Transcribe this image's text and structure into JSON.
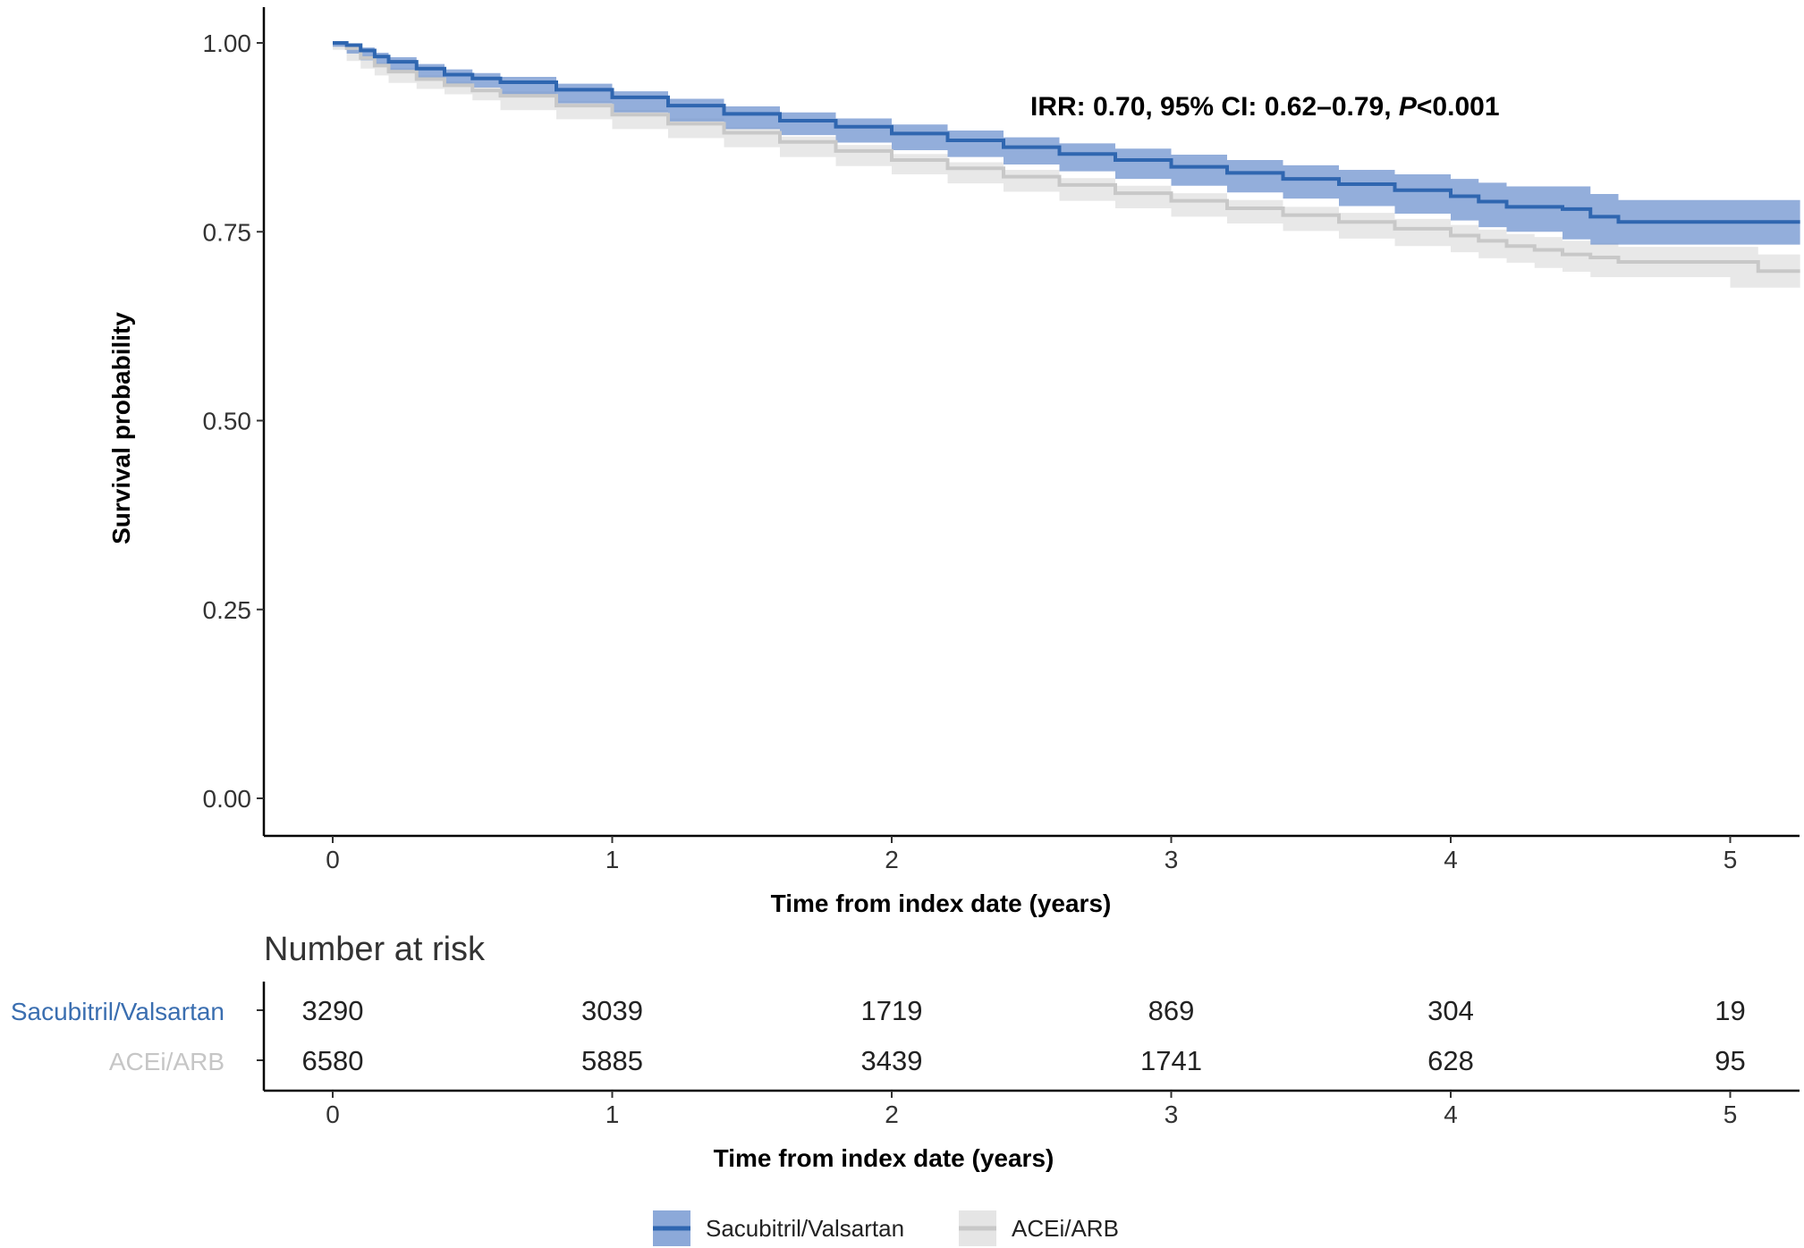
{
  "colors": {
    "sacubitril": "#2f66b0",
    "sacubitril_band": "#6f93cf",
    "acei": "#c8c8c8",
    "acei_band": "#e2e2e2",
    "axis": "#000000"
  },
  "chart_data": [
    {
      "type": "line",
      "subtype": "kaplan-meier",
      "title": "",
      "xlabel": "Time from index date (years)",
      "ylabel": "Survival probability",
      "xlim": [
        0,
        5.25
      ],
      "ylim": [
        0.0,
        1.0
      ],
      "x_ticks": [
        "0",
        "1",
        "2",
        "3",
        "4",
        "5"
      ],
      "y_ticks": [
        "0.00",
        "0.25",
        "0.50",
        "0.75",
        "1.00"
      ],
      "grid": false,
      "annotation": {
        "prefix": "IRR: 0.70, 95% CI: 0.62–0.79, ",
        "p_symbol": "P",
        "p_value": "<0.001"
      },
      "series": [
        {
          "name": "Sacubitril/Valsartan",
          "color": "#2f66b0",
          "x": [
            0,
            0.05,
            0.1,
            0.15,
            0.2,
            0.3,
            0.4,
            0.5,
            0.6,
            0.8,
            1.0,
            1.2,
            1.4,
            1.6,
            1.8,
            2.0,
            2.2,
            2.4,
            2.6,
            2.8,
            3.0,
            3.2,
            3.4,
            3.6,
            3.8,
            4.0,
            4.1,
            4.2,
            4.4,
            4.5,
            4.6,
            4.8,
            5.0,
            5.25
          ],
          "y": [
            1.0,
            0.997,
            0.99,
            0.982,
            0.975,
            0.966,
            0.958,
            0.953,
            0.948,
            0.938,
            0.928,
            0.917,
            0.906,
            0.897,
            0.889,
            0.88,
            0.871,
            0.862,
            0.853,
            0.845,
            0.836,
            0.828,
            0.82,
            0.813,
            0.805,
            0.797,
            0.79,
            0.783,
            0.78,
            0.77,
            0.763,
            0.763,
            0.763,
            0.763
          ],
          "ci_upper": [
            1.0,
            0.999,
            0.994,
            0.987,
            0.981,
            0.972,
            0.965,
            0.96,
            0.955,
            0.946,
            0.936,
            0.926,
            0.916,
            0.908,
            0.9,
            0.892,
            0.884,
            0.875,
            0.867,
            0.86,
            0.852,
            0.845,
            0.838,
            0.832,
            0.826,
            0.82,
            0.815,
            0.81,
            0.81,
            0.8,
            0.792,
            0.792,
            0.792,
            0.792
          ],
          "ci_lower": [
            1.0,
            0.995,
            0.986,
            0.977,
            0.969,
            0.96,
            0.951,
            0.946,
            0.941,
            0.93,
            0.92,
            0.908,
            0.896,
            0.886,
            0.878,
            0.868,
            0.858,
            0.849,
            0.839,
            0.83,
            0.82,
            0.811,
            0.802,
            0.794,
            0.784,
            0.774,
            0.765,
            0.756,
            0.75,
            0.74,
            0.733,
            0.733,
            0.733,
            0.733
          ]
        },
        {
          "name": "ACEi/ARB",
          "color": "#c8c8c8",
          "x": [
            0,
            0.05,
            0.1,
            0.15,
            0.2,
            0.3,
            0.4,
            0.5,
            0.6,
            0.8,
            1.0,
            1.2,
            1.4,
            1.6,
            1.8,
            2.0,
            2.2,
            2.4,
            2.6,
            2.8,
            3.0,
            3.2,
            3.4,
            3.6,
            3.8,
            4.0,
            4.1,
            4.2,
            4.3,
            4.4,
            4.5,
            4.6,
            4.8,
            5.0,
            5.1,
            5.25
          ],
          "y": [
            1.0,
            0.993,
            0.98,
            0.97,
            0.962,
            0.952,
            0.944,
            0.937,
            0.93,
            0.917,
            0.905,
            0.893,
            0.881,
            0.869,
            0.857,
            0.845,
            0.834,
            0.823,
            0.812,
            0.801,
            0.791,
            0.781,
            0.772,
            0.763,
            0.754,
            0.745,
            0.738,
            0.731,
            0.726,
            0.72,
            0.716,
            0.71,
            0.71,
            0.71,
            0.698,
            0.698
          ],
          "ci_upper": [
            1.0,
            0.995,
            0.984,
            0.974,
            0.967,
            0.957,
            0.949,
            0.942,
            0.936,
            0.923,
            0.911,
            0.9,
            0.888,
            0.876,
            0.865,
            0.853,
            0.842,
            0.832,
            0.821,
            0.811,
            0.801,
            0.792,
            0.783,
            0.775,
            0.767,
            0.759,
            0.753,
            0.747,
            0.743,
            0.738,
            0.735,
            0.73,
            0.73,
            0.73,
            0.72,
            0.72
          ],
          "ci_lower": [
            1.0,
            0.991,
            0.976,
            0.966,
            0.957,
            0.947,
            0.939,
            0.932,
            0.924,
            0.911,
            0.899,
            0.886,
            0.874,
            0.862,
            0.849,
            0.837,
            0.826,
            0.814,
            0.803,
            0.791,
            0.781,
            0.77,
            0.761,
            0.751,
            0.741,
            0.731,
            0.723,
            0.715,
            0.709,
            0.702,
            0.697,
            0.69,
            0.69,
            0.69,
            0.676,
            0.676
          ]
        }
      ]
    },
    {
      "type": "table",
      "title": "Number at risk",
      "xlabel": "Time from index date (years)",
      "x_ticks": [
        "0",
        "1",
        "2",
        "3",
        "4",
        "5"
      ],
      "rows": [
        {
          "label": "Sacubitril/Valsartan",
          "color": "#2f66b0",
          "values": [
            "3290",
            "3039",
            "1719",
            "869",
            "304",
            "19"
          ]
        },
        {
          "label": "ACEi/ARB",
          "color": "#c8c8c8",
          "values": [
            "6580",
            "5885",
            "3439",
            "1741",
            "628",
            "95"
          ]
        }
      ]
    }
  ],
  "legend": {
    "placement": "bottom",
    "items": [
      {
        "label": "Sacubitril/Valsartan",
        "color": "#2f66b0",
        "band": "#6f93cf"
      },
      {
        "label": "ACEi/ARB",
        "color": "#c8c8c8",
        "band": "#e2e2e2"
      }
    ]
  }
}
